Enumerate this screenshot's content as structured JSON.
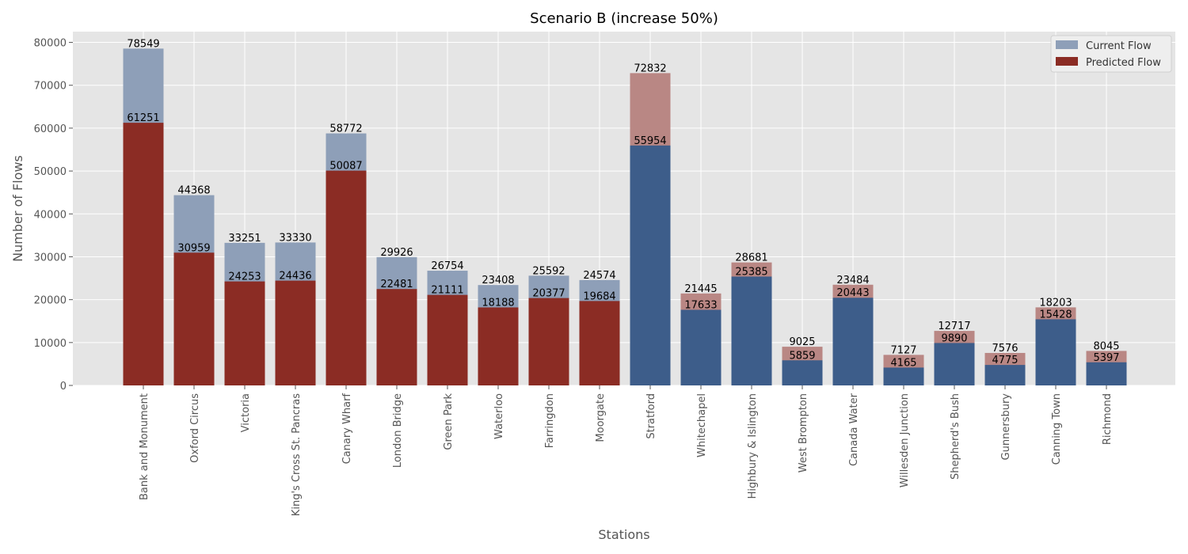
{
  "chart_data": {
    "type": "bar",
    "title": "Scenario B (increase 50%)",
    "xlabel": "Stations",
    "ylabel": "Number of Flows",
    "ylim": [
      0,
      82500
    ],
    "yticks": [
      0,
      10000,
      20000,
      30000,
      40000,
      50000,
      60000,
      70000,
      80000
    ],
    "grid": true,
    "legend_position": "top-right",
    "categories": [
      "Bank and Monument",
      "Oxford Circus",
      "Victoria",
      "King's Cross St. Pancras",
      "Canary Wharf",
      "London Bridge",
      "Green Park",
      "Waterloo",
      "Farringdon",
      "Moorgate",
      "Stratford",
      "Whitechapel",
      "Highbury & Islington",
      "West Brompton",
      "Canada Water",
      "Willesden Junction",
      "Shepherd's Bush",
      "Gunnersbury",
      "Canning Town",
      "Richmond"
    ],
    "series": [
      {
        "name": "Current Flow",
        "values": [
          78549,
          44368,
          33251,
          33330,
          58772,
          29926,
          26754,
          23408,
          25592,
          24574,
          55954,
          17633,
          25385,
          5859,
          20443,
          4165,
          9890,
          4775,
          15428,
          5397
        ],
        "color": "#8e9fb8"
      },
      {
        "name": "Predicted Flow",
        "values": [
          61251,
          30959,
          24253,
          24436,
          50087,
          22481,
          21111,
          18188,
          20377,
          19684,
          72832,
          21445,
          28681,
          9025,
          23484,
          7127,
          12717,
          7576,
          18203,
          8045
        ],
        "color": "#8b2c24"
      }
    ],
    "colors": {
      "decrease_back": "#8e9fb8",
      "decrease_front": "#8b2c24",
      "increase_back": "#b98784",
      "increase_front": "#3d5d8a",
      "plot_background": "#e5e5e5",
      "grid": "#ffffff"
    }
  }
}
